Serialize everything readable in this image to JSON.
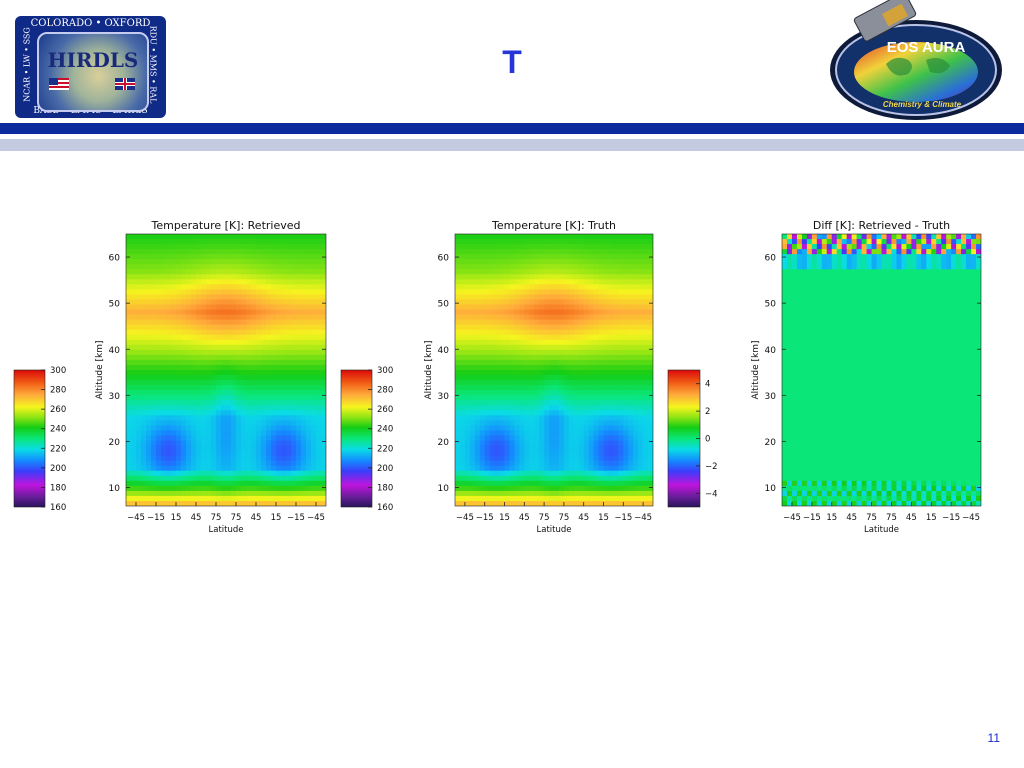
{
  "slide": {
    "title": "T",
    "page_number": "11",
    "colors": {
      "title": "#2535d8",
      "bar_dark": "#0b2a9e",
      "bar_light": "#c4cbe0",
      "page_number": "#1a2ad0"
    }
  },
  "logos": {
    "hirdls": {
      "top": "COLORADO • OXFORD",
      "left": "NCAR • LW • SSG",
      "right": "RDU • MMS • RAL",
      "bottom": "BASD • LMMS • LMIRIS",
      "center": "HIRDLS"
    },
    "aura": {
      "name": "EOS AURA",
      "tagline": "Chemistry & Climate"
    }
  },
  "chart_data": [
    {
      "type": "heatmap",
      "title": "Temperature [K]: Retrieved",
      "xlabel": "Latitude",
      "ylabel": "Altitude [km]",
      "x_ticks": [
        "-45",
        "-15",
        "15",
        "45",
        "75",
        "75",
        "45",
        "15",
        "-15",
        "-45"
      ],
      "y_ticks": [
        10,
        20,
        30,
        40,
        50,
        60
      ],
      "ylim": [
        6,
        65
      ],
      "colorbar": {
        "ticks": [
          160,
          180,
          200,
          220,
          240,
          260,
          280,
          300
        ],
        "range": [
          160,
          300
        ]
      }
    },
    {
      "type": "heatmap",
      "title": "Temperature [K]: Truth",
      "xlabel": "Latitude",
      "ylabel": "Altitude [km]",
      "x_ticks": [
        "-45",
        "-15",
        "15",
        "45",
        "75",
        "75",
        "45",
        "15",
        "-15",
        "-45"
      ],
      "y_ticks": [
        10,
        20,
        30,
        40,
        50,
        60
      ],
      "ylim": [
        6,
        65
      ],
      "colorbar": {
        "ticks": [
          160,
          180,
          200,
          220,
          240,
          260,
          280,
          300
        ],
        "range": [
          160,
          300
        ]
      }
    },
    {
      "type": "heatmap",
      "title": "Diff [K]: Retrieved - Truth",
      "xlabel": "Latitude",
      "ylabel": "Altitude [km]",
      "x_ticks": [
        "-45",
        "-15",
        "15",
        "45",
        "75",
        "75",
        "45",
        "15",
        "-15",
        "-45"
      ],
      "y_ticks": [
        10,
        20,
        30,
        40,
        50,
        60
      ],
      "ylim": [
        6,
        65
      ],
      "colorbar": {
        "ticks": [
          -4,
          -2,
          0,
          2,
          4
        ],
        "range": [
          -5,
          5
        ]
      }
    }
  ]
}
